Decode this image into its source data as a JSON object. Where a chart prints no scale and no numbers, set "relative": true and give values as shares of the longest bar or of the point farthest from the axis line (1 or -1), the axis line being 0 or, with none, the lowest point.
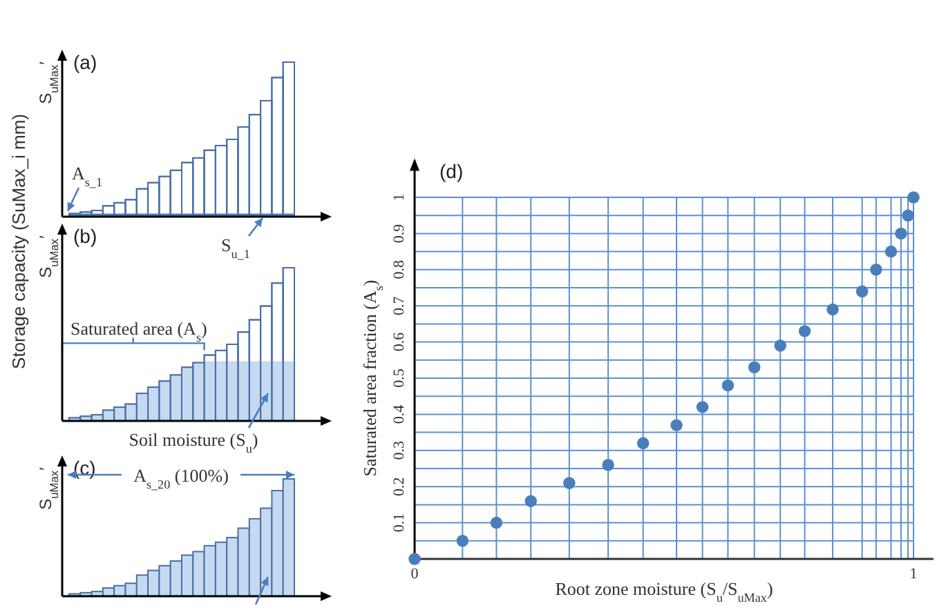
{
  "chart_data": [
    {
      "type": "bar",
      "relative": true,
      "title": "(a)",
      "ylabel": "S$_{uMax}$′",
      "categories": [
        null,
        null,
        null,
        null,
        null,
        null,
        null,
        null,
        null,
        null,
        null,
        null,
        null,
        null,
        null,
        null,
        null,
        null,
        null,
        null
      ],
      "values": [
        0.02,
        0.03,
        0.04,
        0.07,
        0.09,
        0.11,
        0.18,
        0.22,
        0.26,
        0.3,
        0.35,
        0.38,
        0.43,
        0.46,
        0.5,
        0.58,
        0.66,
        0.75,
        0.9,
        1.0
      ],
      "color": "#ffffff",
      "bands": [
        {
          "axis": "y",
          "from": 0,
          "to": 0.02,
          "color": "#4a7ebb"
        }
      ],
      "annotations": [
        "Storage capacity (SuMax_i mm)",
        "A$_{s_1}$",
        "S$_{u_1}$"
      ]
    },
    {
      "type": "bar",
      "relative": true,
      "title": "(b)",
      "ylabel": "S$_{uMax}$′",
      "categories": [
        null,
        null,
        null,
        null,
        null,
        null,
        null,
        null,
        null,
        null,
        null,
        null,
        null,
        null,
        null,
        null,
        null,
        null,
        null,
        null
      ],
      "values": [
        0.02,
        0.03,
        0.04,
        0.07,
        0.09,
        0.11,
        0.18,
        0.22,
        0.26,
        0.3,
        0.35,
        0.38,
        0.43,
        0.46,
        0.5,
        0.58,
        0.66,
        0.75,
        0.9,
        1.0
      ],
      "color": "#ffffff",
      "bands": [
        {
          "axis": "y",
          "from": 0,
          "to": 0.39,
          "color": "#c5d9f1",
          "label": "Saturated area (A$_{s}$)"
        }
      ],
      "annotations": [
        "Soil moisture (S$_{u}$)"
      ]
    },
    {
      "type": "bar",
      "relative": true,
      "title": "(c)",
      "ylabel": "S$_{uMax}$′",
      "categories": [
        null,
        null,
        null,
        null,
        null,
        null,
        null,
        null,
        null,
        null,
        null,
        null,
        null,
        null,
        null,
        null,
        null,
        null,
        null,
        null
      ],
      "values": [
        0.02,
        0.03,
        0.04,
        0.07,
        0.09,
        0.11,
        0.18,
        0.22,
        0.26,
        0.3,
        0.35,
        0.38,
        0.43,
        0.46,
        0.5,
        0.58,
        0.66,
        0.75,
        0.9,
        1.0
      ],
      "color": "#c5d9f1",
      "annotations": [
        "A$_{s_20}$ (100%)"
      ]
    },
    {
      "type": "scatter",
      "title": "(d)",
      "xlabel": "Root zone moisture (S$_{u}$/S$_{uMax}$)",
      "ylabel": "Saturated area fraction (A$_{s}$)",
      "marker": "circle",
      "grid": true,
      "x": [
        0,
        0.096,
        0.164,
        0.233,
        0.31,
        0.388,
        0.458,
        0.525,
        0.577,
        0.628,
        0.681,
        0.733,
        0.782,
        0.838,
        0.897,
        0.925,
        0.955,
        0.975,
        0.989,
        1.0
      ],
      "values": [
        0,
        0.05,
        0.1,
        0.16,
        0.21,
        0.26,
        0.32,
        0.37,
        0.42,
        0.48,
        0.53,
        0.59,
        0.63,
        0.69,
        0.74,
        0.8,
        0.85,
        0.9,
        0.95,
        1.0
      ],
      "color": "#4a7ebb",
      "xlim": [
        0,
        1.04
      ],
      "ylim": [
        0,
        1.1
      ],
      "xticks": [
        0,
        {
          "value": 0.096,
          "label": null
        },
        {
          "value": 0.164,
          "label": null
        },
        {
          "value": 0.233,
          "label": null
        },
        {
          "value": 0.31,
          "label": null
        },
        {
          "value": 0.388,
          "label": null
        },
        {
          "value": 0.458,
          "label": null
        },
        {
          "value": 0.525,
          "label": null
        },
        {
          "value": 0.577,
          "label": null
        },
        {
          "value": 0.628,
          "label": null
        },
        {
          "value": 0.681,
          "label": null
        },
        {
          "value": 0.733,
          "label": null
        },
        {
          "value": 0.782,
          "label": null
        },
        {
          "value": 0.838,
          "label": null
        },
        {
          "value": 0.897,
          "label": null
        },
        {
          "value": 0.925,
          "label": null
        },
        {
          "value": 0.955,
          "label": null
        },
        {
          "value": 0.975,
          "label": null
        },
        {
          "value": 0.989,
          "label": null
        },
        1
      ],
      "yticks": [
        {
          "value": 0,
          "label": null
        },
        {
          "value": 0.05,
          "label": null
        },
        0.1,
        {
          "value": 0.15,
          "label": null
        },
        0.2,
        {
          "value": 0.25,
          "label": null
        },
        0.3,
        {
          "value": 0.35,
          "label": null
        },
        0.4,
        {
          "value": 0.45,
          "label": null
        },
        0.5,
        {
          "value": 0.55,
          "label": null
        },
        0.6,
        {
          "value": 0.65,
          "label": null
        },
        0.7,
        {
          "value": 0.75,
          "label": null
        },
        0.8,
        {
          "value": 0.85,
          "label": null
        },
        0.9,
        {
          "value": 0.95,
          "label": null
        },
        1
      ]
    }
  ]
}
